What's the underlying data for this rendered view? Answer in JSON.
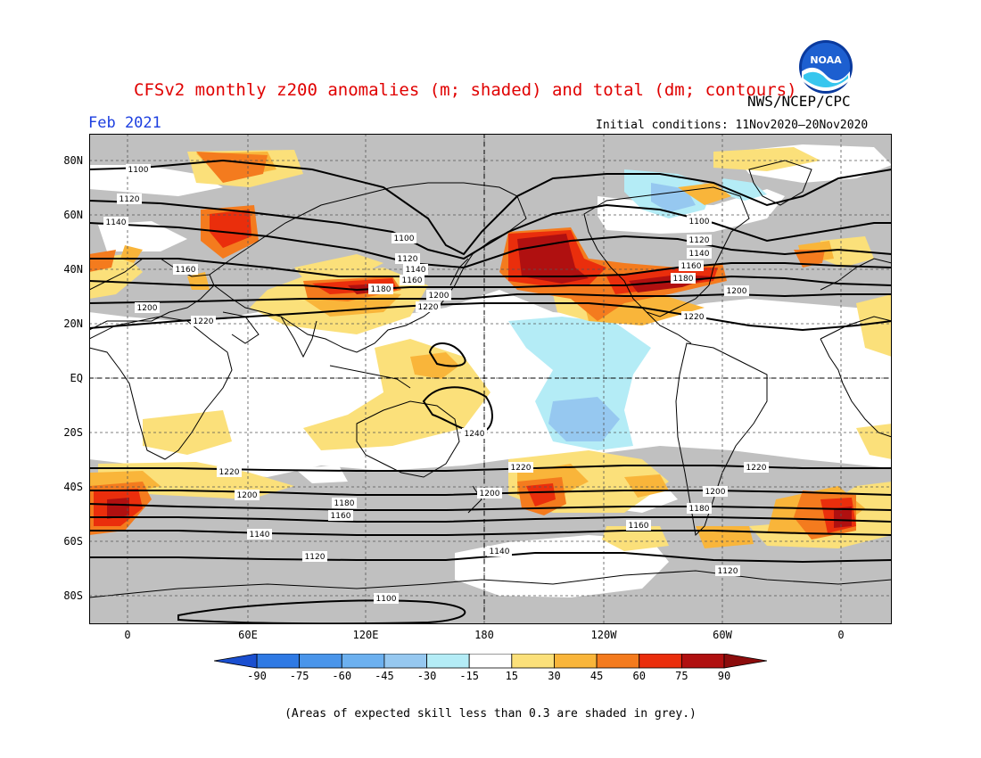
{
  "header": {
    "title": "CFSv2 monthly z200 anomalies (m; shaded) and total (dm; contours)",
    "agency": "NWS/NCEP/CPC",
    "month": "Feb 2021",
    "initial_conditions": "Initial conditions: 11Nov2020–20Nov2020",
    "logo_text": "NOAA"
  },
  "map": {
    "lat_labels": [
      "80N",
      "60N",
      "40N",
      "20N",
      "EQ",
      "20S",
      "40S",
      "60S",
      "80S"
    ],
    "lon_labels": [
      "0",
      "60E",
      "120E",
      "180",
      "120W",
      "60W",
      "0"
    ],
    "contour_labels": [
      "1100",
      "1120",
      "1140",
      "1160",
      "1180",
      "1200",
      "1220",
      "1240"
    ],
    "colors": {
      "grey_skill": "#c0c0c0",
      "pos_15_30": "#fbe07a",
      "pos_30_45": "#f9b53a",
      "pos_45_60": "#f47b1e",
      "pos_60_75": "#ea2e0c",
      "pos_75_90": "#b01010",
      "neg_15_30": "#b4ecf6",
      "neg_30_45": "#96c8f0"
    }
  },
  "colorbar": {
    "labels": [
      "-90",
      "-75",
      "-60",
      "-45",
      "-30",
      "-15",
      "15",
      "30",
      "45",
      "60",
      "75",
      "90"
    ],
    "colors": [
      "#1c5ed8",
      "#2f7ae4",
      "#4a95ea",
      "#6cb0ef",
      "#96c8f0",
      "#b4ecf6",
      "#ffffff",
      "#fbe07a",
      "#f9b53a",
      "#f47b1e",
      "#ea2e0c",
      "#b01010"
    ],
    "low_color": "#1a4fd0",
    "high_color": "#8c0c0c"
  },
  "footnote": "(Areas of expected skill less than 0.3 are shaded in grey.)"
}
